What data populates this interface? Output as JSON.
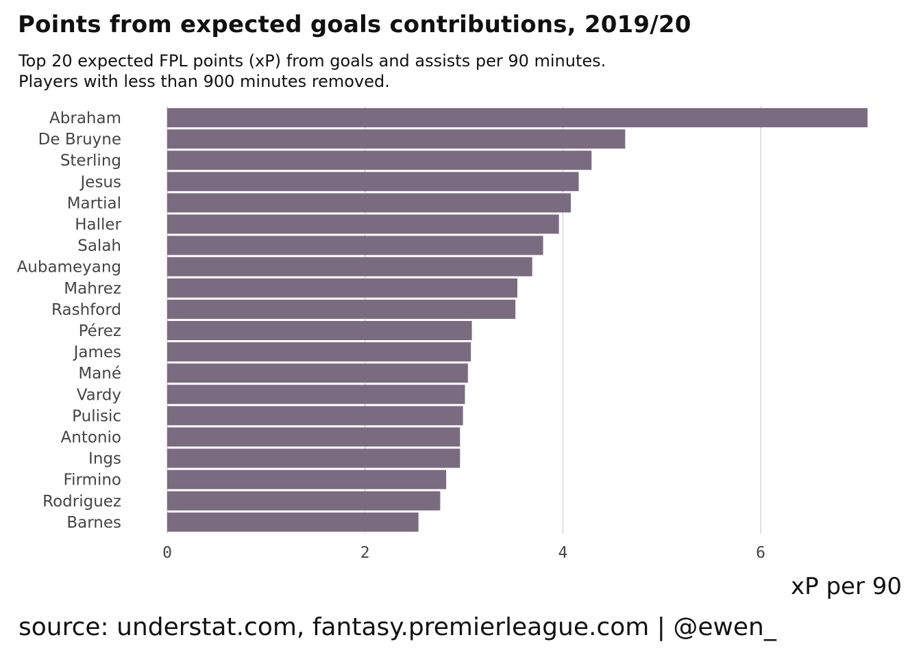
{
  "title": "Points from expected goals contributions, 2019/20",
  "subtitle": {
    "line1": "Top 20 expected FPL points (xP) from goals and assists per 90 minutes.",
    "line2": "Players with less than 900 minutes removed."
  },
  "caption": "source: understat.com, fantasy.premierleague.com | @ewen_",
  "colors": {
    "bar": "#7a6b80",
    "grid": "#d0d0d0",
    "text": "#111111",
    "label": "#444444"
  },
  "chart_data": {
    "type": "bar",
    "orientation": "horizontal",
    "categories": [
      "Abraham",
      "De Bruyne",
      "Sterling",
      "Jesus",
      "Martial",
      "Haller",
      "Salah",
      "Aubameyang",
      "Mahrez",
      "Rashford",
      "Pérez",
      "James",
      "Mané",
      "Vardy",
      "Pulisic",
      "Antonio",
      "Ings",
      "Firmino",
      "Rodriguez",
      "Barnes"
    ],
    "values": [
      7.08,
      4.63,
      4.29,
      4.16,
      4.08,
      3.96,
      3.8,
      3.69,
      3.54,
      3.52,
      3.08,
      3.07,
      3.04,
      3.01,
      2.99,
      2.96,
      2.96,
      2.82,
      2.76,
      2.54
    ],
    "xlabel": "xP per 90",
    "ylabel": "",
    "xlim": [
      0,
      7.08
    ],
    "xticks": [
      "0",
      "2",
      "4",
      "6"
    ],
    "grid": "vertical",
    "legend": "none"
  }
}
